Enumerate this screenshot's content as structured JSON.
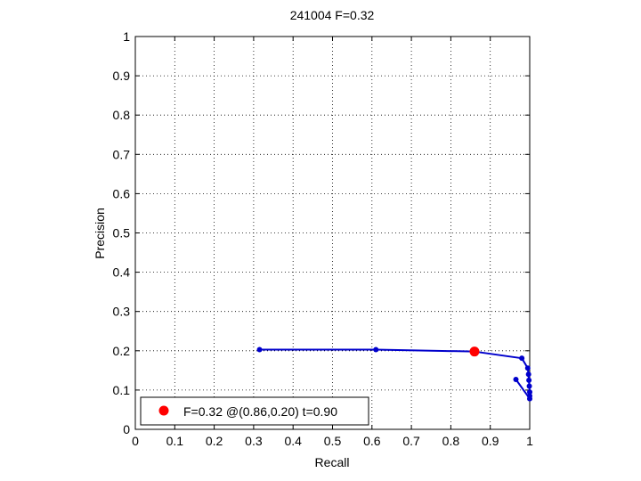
{
  "chart_data": {
    "type": "line",
    "title": "241004 F=0.32",
    "xlabel": "Recall",
    "ylabel": "Precision",
    "xlim": [
      0,
      1
    ],
    "ylim": [
      0,
      1
    ],
    "xticks": [
      "0",
      "0.1",
      "0.2",
      "0.3",
      "0.4",
      "0.5",
      "0.6",
      "0.7",
      "0.8",
      "0.9",
      "1"
    ],
    "yticks": [
      "0",
      "0.1",
      "0.2",
      "0.3",
      "0.4",
      "0.5",
      "0.6",
      "0.7",
      "0.8",
      "0.9",
      "1"
    ],
    "grid": true,
    "series": [
      {
        "color": "#0000cc",
        "points": [
          [
            0.315,
            0.203
          ],
          [
            0.61,
            0.203
          ],
          [
            0.86,
            0.198
          ],
          [
            0.98,
            0.181
          ],
          [
            0.995,
            0.156
          ],
          [
            0.997,
            0.14
          ],
          [
            0.998,
            0.125
          ],
          [
            0.999,
            0.11
          ],
          [
            1.0,
            0.095
          ],
          [
            1.0,
            0.085
          ],
          [
            1.0,
            0.078
          ],
          [
            0.965,
            0.127
          ]
        ]
      }
    ],
    "best_point": {
      "x": 0.86,
      "y": 0.198,
      "color": "#ff0000"
    },
    "legend": {
      "text": "F=0.32 @(0.86,0.20) t=0.90",
      "position": "bottom-left"
    }
  }
}
